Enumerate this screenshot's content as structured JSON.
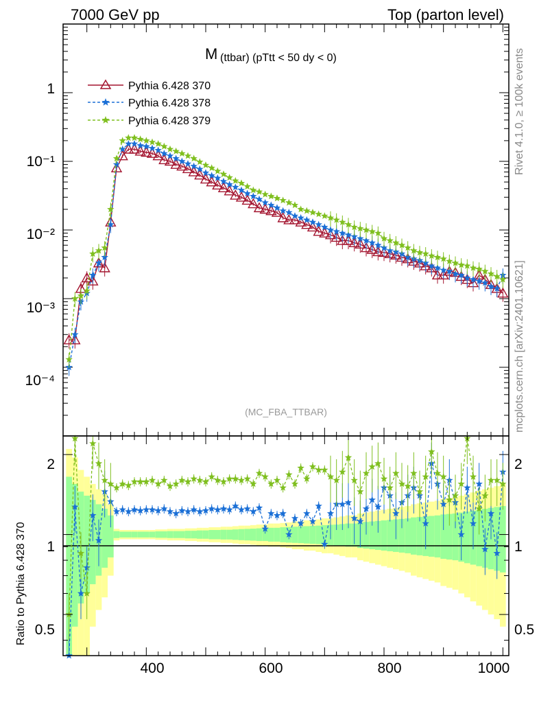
{
  "header": {
    "left": "7000 GeV pp",
    "right": "Top (parton level)"
  },
  "side_text": {
    "rivet": "Rivet 4.1.0, ≥ 100k events",
    "mcplots": "mcplots.cern.ch [arXiv:2401.10621]"
  },
  "colors": {
    "s370": "#a3142f",
    "s378": "#1a6fd6",
    "s379": "#7fbf1f",
    "band_yellow": "#ffff99",
    "band_green": "#99ff99"
  },
  "chart_data": [
    {
      "type": "line",
      "title": "M",
      "subtitle": "(ttbar) (pTtt < 50 dy < 0)",
      "watermark": "(MC_FBA_TTBAR)",
      "xlabel": "",
      "ylabel": "",
      "xlim": [
        260,
        1010
      ],
      "ylim": [
        1e-05,
        10
      ],
      "yscale": "log",
      "ytick_labels": [
        "1",
        "10⁻¹",
        "10⁻²",
        "10⁻³",
        "10⁻⁴"
      ],
      "legend_position": "top-left",
      "series": [
        {
          "name": "Pythia 6.428 370",
          "marker": "triangle",
          "style": "solid",
          "x": [
            270,
            280,
            290,
            300,
            310,
            320,
            330,
            340,
            350,
            360,
            370,
            380,
            390,
            400,
            410,
            420,
            430,
            440,
            450,
            460,
            470,
            480,
            490,
            500,
            510,
            520,
            530,
            540,
            550,
            560,
            570,
            580,
            590,
            600,
            610,
            620,
            630,
            640,
            650,
            660,
            670,
            680,
            690,
            700,
            710,
            720,
            730,
            740,
            750,
            760,
            770,
            780,
            790,
            800,
            810,
            820,
            830,
            840,
            850,
            860,
            870,
            880,
            890,
            900,
            910,
            920,
            930,
            940,
            950,
            960,
            970,
            980,
            990,
            1000
          ],
          "values": [
            0.00025,
            0.00025,
            0.0014,
            0.002,
            0.0018,
            0.0033,
            0.0028,
            0.013,
            0.08,
            0.12,
            0.15,
            0.15,
            0.14,
            0.135,
            0.13,
            0.12,
            0.105,
            0.1,
            0.09,
            0.085,
            0.078,
            0.07,
            0.063,
            0.055,
            0.05,
            0.045,
            0.041,
            0.037,
            0.032,
            0.03,
            0.027,
            0.024,
            0.021,
            0.02,
            0.019,
            0.018,
            0.015,
            0.014,
            0.014,
            0.013,
            0.012,
            0.011,
            0.0095,
            0.009,
            0.0085,
            0.0078,
            0.007,
            0.007,
            0.0065,
            0.0062,
            0.0055,
            0.0052,
            0.0048,
            0.0047,
            0.0045,
            0.0043,
            0.004,
            0.0038,
            0.0035,
            0.0033,
            0.003,
            0.0028,
            0.0022,
            0.0022,
            0.0025,
            0.0024,
            0.0021,
            0.0019,
            0.0017,
            0.0022,
            0.0019,
            0.0016,
            0.0014,
            0.0012
          ]
        },
        {
          "name": "Pythia 6.428 378",
          "marker": "star",
          "style": "dashed",
          "x": [
            270,
            280,
            290,
            300,
            310,
            320,
            330,
            340,
            350,
            360,
            370,
            380,
            390,
            400,
            410,
            420,
            430,
            440,
            450,
            460,
            470,
            480,
            490,
            500,
            510,
            520,
            530,
            540,
            550,
            560,
            570,
            580,
            590,
            600,
            610,
            620,
            630,
            640,
            650,
            660,
            670,
            680,
            690,
            700,
            710,
            720,
            730,
            740,
            750,
            760,
            770,
            780,
            790,
            800,
            810,
            820,
            830,
            840,
            850,
            860,
            870,
            880,
            890,
            900,
            910,
            920,
            930,
            940,
            950,
            960,
            970,
            980,
            990,
            1000
          ],
          "values": [
            0.0001,
            0.0003,
            0.0009,
            0.0012,
            0.0022,
            0.0033,
            0.004,
            0.012,
            0.09,
            0.15,
            0.18,
            0.18,
            0.17,
            0.165,
            0.155,
            0.145,
            0.13,
            0.12,
            0.11,
            0.1,
            0.092,
            0.085,
            0.077,
            0.068,
            0.062,
            0.057,
            0.051,
            0.046,
            0.042,
            0.038,
            0.034,
            0.031,
            0.028,
            0.025,
            0.023,
            0.021,
            0.019,
            0.018,
            0.016,
            0.015,
            0.014,
            0.013,
            0.012,
            0.011,
            0.01,
            0.0095,
            0.009,
            0.0085,
            0.008,
            0.0075,
            0.007,
            0.0065,
            0.006,
            0.0055,
            0.005,
            0.0048,
            0.0045,
            0.004,
            0.0038,
            0.0036,
            0.0033,
            0.003,
            0.0028,
            0.0026,
            0.0025,
            0.0023,
            0.0022,
            0.002,
            0.0019,
            0.0018,
            0.0017,
            0.0015,
            0.0014,
            0.0022
          ]
        },
        {
          "name": "Pythia 6.428 379",
          "marker": "star",
          "style": "dashed",
          "x": [
            270,
            280,
            290,
            300,
            310,
            320,
            330,
            340,
            350,
            360,
            370,
            380,
            390,
            400,
            410,
            420,
            430,
            440,
            450,
            460,
            470,
            480,
            490,
            500,
            510,
            520,
            530,
            540,
            550,
            560,
            570,
            580,
            590,
            600,
            610,
            620,
            630,
            640,
            650,
            660,
            670,
            680,
            690,
            700,
            710,
            720,
            730,
            740,
            750,
            760,
            770,
            780,
            790,
            800,
            810,
            820,
            830,
            840,
            850,
            860,
            870,
            880,
            890,
            900,
            910,
            920,
            930,
            940,
            950,
            960,
            970,
            980,
            990,
            1000
          ],
          "values": [
            0.00013,
            0.001,
            0.0011,
            0.0013,
            0.0045,
            0.005,
            0.0055,
            0.02,
            0.11,
            0.2,
            0.22,
            0.22,
            0.21,
            0.2,
            0.19,
            0.18,
            0.165,
            0.15,
            0.14,
            0.13,
            0.12,
            0.11,
            0.098,
            0.088,
            0.08,
            0.072,
            0.065,
            0.058,
            0.052,
            0.048,
            0.043,
            0.038,
            0.036,
            0.033,
            0.031,
            0.029,
            0.027,
            0.025,
            0.023,
            0.02,
            0.019,
            0.018,
            0.017,
            0.016,
            0.015,
            0.014,
            0.013,
            0.012,
            0.011,
            0.0105,
            0.01,
            0.0095,
            0.009,
            0.0075,
            0.007,
            0.0065,
            0.006,
            0.0055,
            0.005,
            0.0047,
            0.0045,
            0.0042,
            0.004,
            0.0038,
            0.0035,
            0.0033,
            0.0031,
            0.003,
            0.0028,
            0.0027,
            0.0025,
            0.0023,
            0.0021,
            0.0019
          ]
        }
      ]
    },
    {
      "type": "line",
      "title": "",
      "xlabel": "",
      "ylabel": "Ratio to Pythia 6.428 370",
      "xlim": [
        260,
        1010
      ],
      "ylim": [
        0.35,
        2.35
      ],
      "yscale": "log",
      "x_ticks": [
        400,
        600,
        800,
        1000
      ],
      "y_ticks": [
        0.5,
        1,
        2
      ],
      "x_tick_labels": [
        "400",
        "600",
        "800",
        "1000"
      ],
      "y_tick_labels": [
        "0.5",
        "1",
        "2"
      ],
      "bands": {
        "x": [
          270,
          280,
          290,
          300,
          310,
          320,
          330,
          340,
          350,
          360,
          370,
          380,
          390,
          400,
          410,
          420,
          430,
          440,
          450,
          460,
          470,
          480,
          490,
          500,
          510,
          520,
          530,
          540,
          550,
          560,
          570,
          580,
          590,
          600,
          610,
          620,
          630,
          640,
          650,
          660,
          670,
          680,
          690,
          700,
          710,
          720,
          730,
          740,
          750,
          760,
          770,
          780,
          790,
          800,
          810,
          820,
          830,
          840,
          850,
          860,
          870,
          880,
          890,
          900,
          910,
          920,
          930,
          940,
          950,
          960,
          970,
          980,
          990,
          1000
        ],
        "yellow_rel": [
          1.1,
          0.95,
          0.75,
          0.65,
          0.55,
          0.48,
          0.42,
          0.3,
          0.05,
          0.04,
          0.04,
          0.04,
          0.04,
          0.04,
          0.04,
          0.045,
          0.045,
          0.05,
          0.05,
          0.05,
          0.055,
          0.055,
          0.06,
          0.06,
          0.065,
          0.065,
          0.07,
          0.07,
          0.075,
          0.08,
          0.08,
          0.085,
          0.09,
          0.09,
          0.1,
          0.1,
          0.105,
          0.11,
          0.12,
          0.12,
          0.13,
          0.13,
          0.14,
          0.15,
          0.15,
          0.16,
          0.17,
          0.18,
          0.18,
          0.2,
          0.21,
          0.22,
          0.23,
          0.24,
          0.25,
          0.26,
          0.27,
          0.28,
          0.3,
          0.31,
          0.32,
          0.33,
          0.34,
          0.36,
          0.37,
          0.38,
          0.4,
          0.42,
          0.44,
          0.46,
          0.48,
          0.5,
          0.52,
          0.55
        ],
        "green_rel": [
          0.65,
          0.55,
          0.45,
          0.4,
          0.35,
          0.3,
          0.25,
          0.18,
          0.03,
          0.025,
          0.025,
          0.025,
          0.025,
          0.025,
          0.025,
          0.028,
          0.028,
          0.03,
          0.03,
          0.03,
          0.033,
          0.033,
          0.036,
          0.036,
          0.04,
          0.04,
          0.042,
          0.042,
          0.045,
          0.048,
          0.05,
          0.052,
          0.055,
          0.055,
          0.06,
          0.06,
          0.065,
          0.068,
          0.07,
          0.072,
          0.075,
          0.078,
          0.08,
          0.085,
          0.088,
          0.09,
          0.095,
          0.1,
          0.1,
          0.11,
          0.115,
          0.12,
          0.125,
          0.13,
          0.135,
          0.14,
          0.145,
          0.15,
          0.16,
          0.165,
          0.17,
          0.175,
          0.18,
          0.19,
          0.195,
          0.2,
          0.21,
          0.22,
          0.23,
          0.24,
          0.25,
          0.26,
          0.27,
          0.28
        ]
      },
      "series": [
        {
          "name": "Pythia 6.428 378",
          "x": [
            270,
            280,
            290,
            300,
            310,
            320,
            330,
            340,
            350,
            360,
            370,
            380,
            390,
            400,
            410,
            420,
            430,
            440,
            450,
            460,
            470,
            480,
            490,
            500,
            510,
            520,
            530,
            540,
            550,
            560,
            570,
            580,
            590,
            600,
            610,
            620,
            630,
            640,
            650,
            660,
            670,
            680,
            690,
            700,
            710,
            720,
            730,
            740,
            750,
            760,
            770,
            780,
            790,
            800,
            810,
            820,
            830,
            840,
            850,
            860,
            870,
            880,
            890,
            900,
            910,
            920,
            930,
            940,
            950,
            960,
            970,
            980,
            990,
            1000
          ],
          "values": [
            0.35,
            1.27,
            0.6,
            0.75,
            1.18,
            0.95,
            1.45,
            1.33,
            1.22,
            1.24,
            1.22,
            1.24,
            1.23,
            1.24,
            1.24,
            1.23,
            1.25,
            1.22,
            1.2,
            1.23,
            1.22,
            1.24,
            1.22,
            1.23,
            1.25,
            1.24,
            1.25,
            1.24,
            1.28,
            1.24,
            1.25,
            1.22,
            1.26,
            1.05,
            1.2,
            1.18,
            1.2,
            1.0,
            1.15,
            1.1,
            1.2,
            1.12,
            1.28,
            0.92,
            1.2,
            1.3,
            1.3,
            1.32,
            1.15,
            1.12,
            1.25,
            1.35,
            1.27,
            1.5,
            1.4,
            1.2,
            1.32,
            1.4,
            1.5,
            1.4,
            1.1,
            1.85,
            1.55,
            1.3,
            1.6,
            1.32,
            1.0,
            1.5,
            1.1,
            1.55,
            0.88,
            1.2,
            0.85,
            1.72
          ]
        },
        {
          "name": "Pythia 6.428 379",
          "x": [
            270,
            280,
            290,
            300,
            310,
            320,
            330,
            340,
            350,
            360,
            370,
            380,
            390,
            400,
            410,
            420,
            430,
            440,
            450,
            460,
            470,
            480,
            490,
            500,
            510,
            520,
            530,
            540,
            550,
            560,
            570,
            580,
            590,
            600,
            610,
            620,
            630,
            640,
            650,
            660,
            670,
            680,
            690,
            700,
            710,
            720,
            730,
            740,
            750,
            760,
            770,
            780,
            790,
            800,
            810,
            820,
            830,
            840,
            850,
            860,
            870,
            880,
            890,
            900,
            910,
            920,
            930,
            940,
            950,
            960,
            970,
            980,
            990,
            1000
          ],
          "values": [
            0.5,
            2.3,
            0.85,
            0.6,
            2.2,
            1.85,
            1.6,
            1.55,
            1.5,
            1.55,
            1.53,
            1.58,
            1.58,
            1.58,
            1.6,
            1.55,
            1.6,
            1.52,
            1.55,
            1.6,
            1.58,
            1.62,
            1.6,
            1.58,
            1.65,
            1.6,
            1.58,
            1.62,
            1.62,
            1.6,
            1.62,
            1.55,
            1.7,
            1.65,
            1.55,
            1.6,
            1.5,
            1.68,
            1.55,
            1.78,
            1.62,
            1.8,
            1.75,
            1.75,
            1.65,
            1.6,
            1.72,
            1.95,
            1.6,
            1.45,
            1.7,
            1.8,
            1.85,
            1.62,
            1.5,
            1.7,
            1.55,
            1.52,
            1.7,
            1.45,
            1.65,
            2.05,
            1.7,
            1.65,
            1.35,
            1.4,
            1.55,
            2.3,
            1.65,
            1.25,
            1.4,
            1.6,
            1.6,
            1.55
          ]
        }
      ]
    }
  ]
}
